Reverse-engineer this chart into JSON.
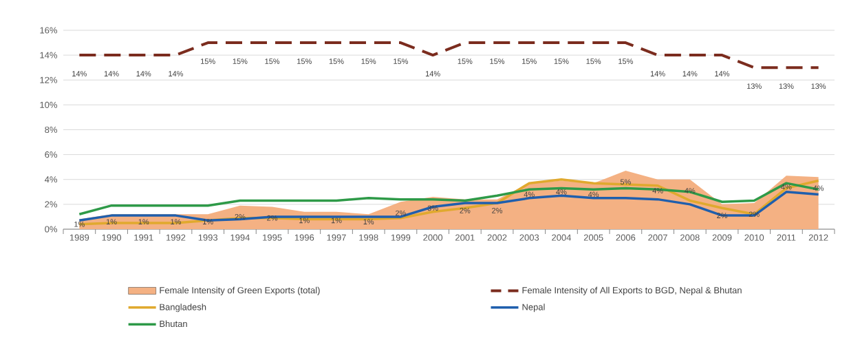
{
  "chart_data": {
    "type": "line",
    "categories": [
      "1989",
      "1990",
      "1991",
      "1992",
      "1993",
      "1994",
      "1995",
      "1996",
      "1997",
      "1998",
      "1999",
      "2000",
      "2001",
      "2002",
      "2003",
      "2004",
      "2005",
      "2006",
      "2007",
      "2008",
      "2009",
      "2010",
      "2011",
      "2012"
    ],
    "ylim": [
      0,
      16
    ],
    "yticks": [
      {
        "value": 0,
        "label": "0%"
      },
      {
        "value": 2,
        "label": "2%"
      },
      {
        "value": 4,
        "label": "4%"
      },
      {
        "value": 6,
        "label": "6%"
      },
      {
        "value": 8,
        "label": "8%"
      },
      {
        "value": 10,
        "label": "10%"
      },
      {
        "value": 12,
        "label": "12%"
      },
      {
        "value": 14,
        "label": "14%"
      },
      {
        "value": 16,
        "label": "16%"
      }
    ],
    "grid": "y",
    "legend": "bottom",
    "series": [
      {
        "name": "Female Intensity of Green Exports (total)",
        "type": "area",
        "color": "#f4b183",
        "values": [
          0.8,
          1.2,
          1.2,
          1.2,
          1.2,
          1.9,
          1.8,
          1.4,
          1.4,
          1.2,
          2.2,
          2.6,
          2.4,
          2.4,
          3.7,
          3.9,
          3.7,
          4.7,
          4.0,
          4.0,
          2.0,
          2.1,
          4.3,
          4.2
        ],
        "value_labels": [
          "1%",
          "1%",
          "1%",
          "1%",
          "1%",
          "2%",
          "2%",
          "1%",
          "1%",
          "1%",
          "2%",
          "3%",
          "2%",
          "2%",
          "4%",
          "4%",
          "4%",
          "5%",
          "4%",
          "4%",
          "2%",
          "2%",
          "4%",
          "4%"
        ]
      },
      {
        "name": "Female Intensity of All Exports to BGD, Nepal & Bhutan",
        "color": "#7b2c1e",
        "line_style": "dashed",
        "values": [
          14,
          14,
          14,
          14,
          15,
          15,
          15,
          15,
          15,
          15,
          15,
          14,
          15,
          15,
          15,
          15,
          15,
          15,
          14,
          14,
          14,
          13,
          13,
          13
        ],
        "value_labels": [
          "14%",
          "14%",
          "14%",
          "14%",
          "15%",
          "15%",
          "15%",
          "15%",
          "15%",
          "15%",
          "15%",
          "14%",
          "15%",
          "15%",
          "15%",
          "15%",
          "15%",
          "15%",
          "14%",
          "14%",
          "14%",
          "13%",
          "13%",
          "13%"
        ]
      },
      {
        "name": "Bangladesh",
        "color": "#e0a92e",
        "values": [
          0.4,
          0.5,
          0.5,
          0.5,
          0.7,
          0.9,
          0.9,
          0.8,
          0.8,
          0.8,
          0.9,
          1.4,
          1.7,
          2.1,
          3.7,
          4.0,
          3.7,
          3.6,
          3.5,
          2.3,
          1.7,
          1.2,
          3.3,
          3.9
        ]
      },
      {
        "name": "Nepal",
        "color": "#1f5fad",
        "values": [
          0.7,
          1.1,
          1.1,
          1.1,
          0.7,
          0.8,
          1.0,
          1.0,
          1.0,
          1.0,
          1.0,
          1.8,
          2.1,
          2.1,
          2.5,
          2.7,
          2.5,
          2.5,
          2.4,
          2.0,
          1.1,
          1.1,
          3.0,
          2.8
        ]
      },
      {
        "name": "Bhutan",
        "color": "#2e9a48",
        "values": [
          1.2,
          1.9,
          1.9,
          1.9,
          1.9,
          2.3,
          2.3,
          2.3,
          2.3,
          2.5,
          2.4,
          2.4,
          2.3,
          2.7,
          3.2,
          3.3,
          3.2,
          3.3,
          3.2,
          3.0,
          2.2,
          2.3,
          3.7,
          3.2
        ]
      }
    ]
  }
}
